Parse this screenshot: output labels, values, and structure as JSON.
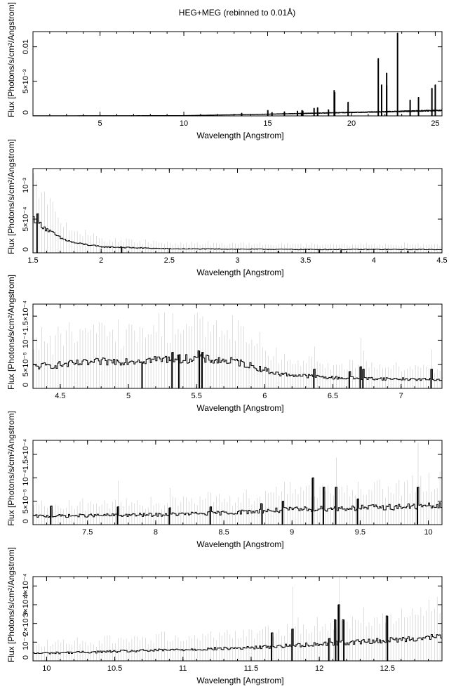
{
  "figure": {
    "title": "HEG+MEG (rebinned to 0.01Å)",
    "colors": {
      "spectrum": "#000000",
      "error_bars": "#c8c8c8",
      "frame": "#000000"
    }
  },
  "chart_data": [
    {
      "type": "histogram-step",
      "xlabel": "Wavelength [Angstrom]",
      "ylabel": "Flux [Photons/s/cm²/Angstrom]",
      "xlim": [
        1.0,
        25.4
      ],
      "ylim": [
        0,
        0.0122
      ],
      "xticks": [
        5,
        10,
        15,
        20,
        25
      ],
      "xtick_labels": [
        "5",
        "10",
        "15",
        "20",
        "25"
      ],
      "yticks": [
        0,
        0.005,
        0.01
      ],
      "ytick_labels": [
        "0",
        "5×10⁻³",
        "0.01"
      ],
      "baseline": [
        [
          1.0,
          2e-05
        ],
        [
          10,
          5e-05
        ],
        [
          14,
          0.0002
        ],
        [
          18,
          0.0004
        ],
        [
          22,
          0.0006
        ],
        [
          25.4,
          0.0008
        ]
      ],
      "noise": 0.25,
      "error_bars": false,
      "lines": [
        [
          13.45,
          0.0004
        ],
        [
          15.01,
          0.0008
        ],
        [
          15.26,
          0.0005
        ],
        [
          16.0,
          0.0006
        ],
        [
          16.78,
          0.0007
        ],
        [
          17.05,
          0.0008
        ],
        [
          17.1,
          0.0007
        ],
        [
          17.77,
          0.0011
        ],
        [
          17.98,
          0.0012
        ],
        [
          18.63,
          0.0009
        ],
        [
          18.97,
          0.0037
        ],
        [
          19.0,
          0.0034
        ],
        [
          19.8,
          0.002
        ],
        [
          21.6,
          0.0083
        ],
        [
          21.8,
          0.0045
        ],
        [
          22.1,
          0.0062
        ],
        [
          22.1,
          0.0044
        ],
        [
          22.75,
          0.012
        ],
        [
          23.5,
          0.0023
        ],
        [
          24.0,
          0.0027
        ],
        [
          24.8,
          0.004
        ],
        [
          25.0,
          0.0045
        ]
      ]
    },
    {
      "type": "histogram-step",
      "xlabel": "Wavelength [Angstrom]",
      "ylabel": "Flux [Photons/s/cm²/Angstrom]",
      "xlim": [
        1.5,
        4.5
      ],
      "ylim": [
        0,
        0.00125
      ],
      "xticks": [
        1.5,
        2,
        2.5,
        3,
        3.5,
        4,
        4.5
      ],
      "xtick_labels": [
        "1.5",
        "2",
        "2.5",
        "3",
        "3.5",
        "4",
        "4.5"
      ],
      "yticks": [
        0,
        0.0005,
        0.001
      ],
      "ytick_labels": [
        "0",
        "5×10⁻⁴",
        "10⁻³"
      ],
      "baseline": [
        [
          1.5,
          0.00052
        ],
        [
          1.6,
          0.00035
        ],
        [
          1.7,
          0.00022
        ],
        [
          1.8,
          0.00015
        ],
        [
          2.0,
          9e-05
        ],
        [
          2.5,
          6e-05
        ],
        [
          3.5,
          5e-05
        ],
        [
          4.5,
          5e-05
        ]
      ],
      "noise": 0.2,
      "error_bars": true,
      "lines": [
        [
          1.53,
          0.00058
        ],
        [
          2.15,
          9e-05
        ],
        [
          3.3,
          3e-05
        ],
        [
          3.6,
          4e-05
        ],
        [
          3.76,
          4e-05
        ],
        [
          4.25,
          3e-05
        ]
      ]
    },
    {
      "type": "histogram-step",
      "xlabel": "Wavelength [Angstrom]",
      "ylabel": "Flux [Photons/s/cm²/Angstrom]",
      "xlim": [
        4.3,
        7.3
      ],
      "ylim": [
        0,
        0.000175
      ],
      "xticks": [
        4.5,
        5,
        5.5,
        6,
        6.5,
        7
      ],
      "xtick_labels": [
        "4.5",
        "5",
        "5.5",
        "6",
        "6.5",
        "7"
      ],
      "yticks": [
        0,
        5e-05,
        0.0001,
        0.00015
      ],
      "ytick_labels": [
        "0",
        "5×10⁻⁵",
        "10⁻⁴",
        "1.5×10⁻⁴"
      ],
      "baseline": [
        [
          4.3,
          4.5e-05
        ],
        [
          4.8,
          5.5e-05
        ],
        [
          5.2,
          6e-05
        ],
        [
          5.5,
          6.2e-05
        ],
        [
          5.8,
          5.5e-05
        ],
        [
          6.1,
          3e-05
        ],
        [
          6.5,
          2.2e-05
        ],
        [
          7.3,
          1.8e-05
        ]
      ],
      "noise": 0.3,
      "error_bars": true,
      "lines": [
        [
          5.1,
          5.5e-05
        ],
        [
          5.32,
          7.5e-05
        ],
        [
          5.37,
          7e-05
        ],
        [
          5.52,
          7.8e-05
        ],
        [
          5.54,
          7.5e-05
        ],
        [
          6.36,
          4e-05
        ],
        [
          6.62,
          3.5e-05
        ],
        [
          6.7,
          4.5e-05
        ],
        [
          6.72,
          4e-05
        ],
        [
          7.22,
          4e-05
        ]
      ]
    },
    {
      "type": "histogram-step",
      "xlabel": "Wavelength [Angstrom]",
      "ylabel": "Flux [Photons/s/cm²/Angstrom]",
      "xlim": [
        7.1,
        10.1
      ],
      "ylim": [
        0,
        0.00018
      ],
      "xticks": [
        7.5,
        8,
        8.5,
        9,
        9.5,
        10
      ],
      "xtick_labels": [
        "7.5",
        "8",
        "8.5",
        "9",
        "9.5",
        "10"
      ],
      "yticks": [
        0,
        5e-05,
        0.0001,
        0.00015
      ],
      "ytick_labels": [
        "0",
        "5×10⁻⁵",
        "10⁻⁴",
        "1.5×10⁻⁴"
      ],
      "baseline": [
        [
          7.1,
          1.8e-05
        ],
        [
          8.0,
          2.1e-05
        ],
        [
          8.5,
          2.5e-05
        ],
        [
          9.0,
          3.2e-05
        ],
        [
          9.5,
          3.6e-05
        ],
        [
          10.1,
          4e-05
        ]
      ],
      "noise": 0.35,
      "error_bars": true,
      "lines": [
        [
          7.23,
          4e-05
        ],
        [
          7.72,
          3.8e-05
        ],
        [
          8.1,
          3.6e-05
        ],
        [
          8.4,
          3.8e-05
        ],
        [
          8.78,
          4.5e-05
        ],
        [
          8.93,
          5e-05
        ],
        [
          9.15,
          0.0001
        ],
        [
          9.23,
          8e-05
        ],
        [
          9.32,
          8e-05
        ],
        [
          9.48,
          5.5e-05
        ],
        [
          9.92,
          8e-05
        ]
      ]
    },
    {
      "type": "histogram-step",
      "xlabel": "Wavelength [Angstrom]",
      "ylabel": "Flux [Photons/s/cm²/Angstrom]",
      "xlim": [
        9.9,
        12.9
      ],
      "ylim": [
        0,
        0.00045
      ],
      "xticks": [
        10,
        10.5,
        11,
        11.5,
        12,
        12.5
      ],
      "xtick_labels": [
        "10",
        "10.5",
        "11",
        "11.5",
        "12",
        "12.5"
      ],
      "yticks": [
        0,
        0.0001,
        0.0002,
        0.0003,
        0.0004
      ],
      "ytick_labels": [
        "0",
        "10⁻⁴",
        "2×10⁻⁴",
        "3×10⁻⁴",
        "4×10⁻⁴"
      ],
      "baseline": [
        [
          9.9,
          4e-05
        ],
        [
          10.5,
          5e-05
        ],
        [
          11.0,
          6e-05
        ],
        [
          11.5,
          7e-05
        ],
        [
          12.0,
          9e-05
        ],
        [
          12.5,
          0.00011
        ],
        [
          12.9,
          0.00013
        ]
      ],
      "noise": 0.25,
      "error_bars": true,
      "lines": [
        [
          11.65,
          0.00015
        ],
        [
          11.8,
          0.00017
        ],
        [
          12.07,
          0.00012
        ],
        [
          12.12,
          0.00022
        ],
        [
          12.14,
          0.0003
        ],
        [
          12.18,
          0.00022
        ],
        [
          12.5,
          0.00024
        ]
      ]
    }
  ]
}
